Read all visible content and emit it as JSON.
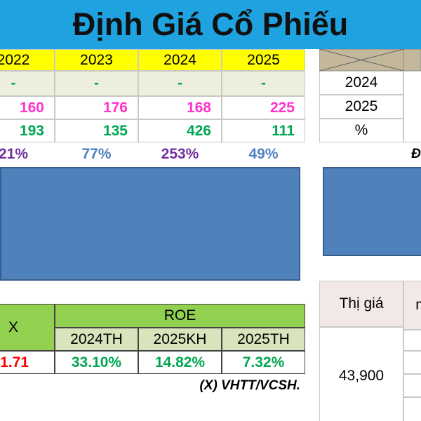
{
  "header": {
    "title": "Định Giá Cổ Phiếu"
  },
  "year_table": {
    "years": [
      "2022",
      "2023",
      "2024",
      "2025"
    ],
    "rows": [
      [
        "-",
        "-",
        "-",
        "-"
      ],
      [
        "160",
        "176",
        "168",
        "225"
      ],
      [
        "193",
        "135",
        "426",
        "111"
      ],
      [
        "21%",
        "77%",
        "253%",
        "49%"
      ]
    ]
  },
  "side_table": {
    "rows": [
      "2024",
      "2025",
      "%"
    ],
    "partial_label": "Đ"
  },
  "roe_table": {
    "x_header": "X",
    "roe_header": "ROE",
    "sub_headers": [
      "2024TH",
      "2025KH",
      "2025TH"
    ],
    "x_value": "1.71",
    "roe_values": [
      "33.10%",
      "14.82%",
      "7.32%"
    ],
    "note": "(X) VHTT/VCSH."
  },
  "price_table": {
    "label": "Thị giá",
    "value": "43,900",
    "partial_label": "m"
  }
}
